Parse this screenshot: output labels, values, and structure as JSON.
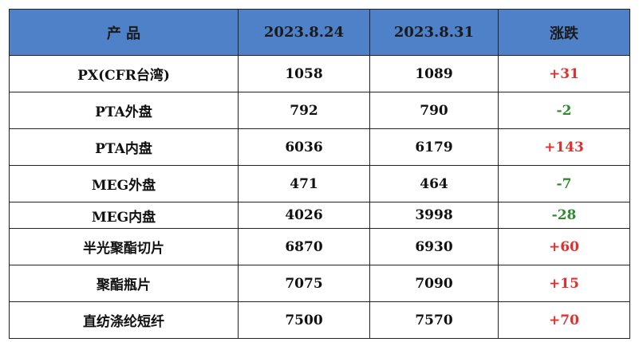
{
  "headers": [
    "产 品",
    "2023.8.24",
    "2023.8.31",
    "涨跌"
  ],
  "rows": [
    {
      "product": "PX(CFR台湾)",
      "d1": "1058",
      "d2": "1089",
      "change": "+31",
      "dir": "up"
    },
    {
      "product": "PTA外盘",
      "d1": "792",
      "d2": "790",
      "change": "-2",
      "dir": "down"
    },
    {
      "product": "PTA内盘",
      "d1": "6036",
      "d2": "6179",
      "change": "+143",
      "dir": "up"
    },
    {
      "product": "MEG外盘",
      "d1": "471",
      "d2": "464",
      "change": "-7",
      "dir": "down"
    },
    {
      "product": "MEG内盘",
      "d1": "4026",
      "d2": "3998",
      "change": "-28",
      "dir": "down"
    },
    {
      "product": "半光聚酯切片",
      "d1": "6870",
      "d2": "6930",
      "change": "+60",
      "dir": "up"
    },
    {
      "product": "聚酯瓶片",
      "d1": "7075",
      "d2": "7090",
      "change": "+15",
      "dir": "up"
    },
    {
      "product": "直纺涤纶短纤",
      "d1": "7500",
      "d2": "7570",
      "change": "+70",
      "dir": "up"
    }
  ],
  "colors": {
    "header_bg": "#4f81c8",
    "up": "#e0302d",
    "down": "#2e8b2e"
  }
}
